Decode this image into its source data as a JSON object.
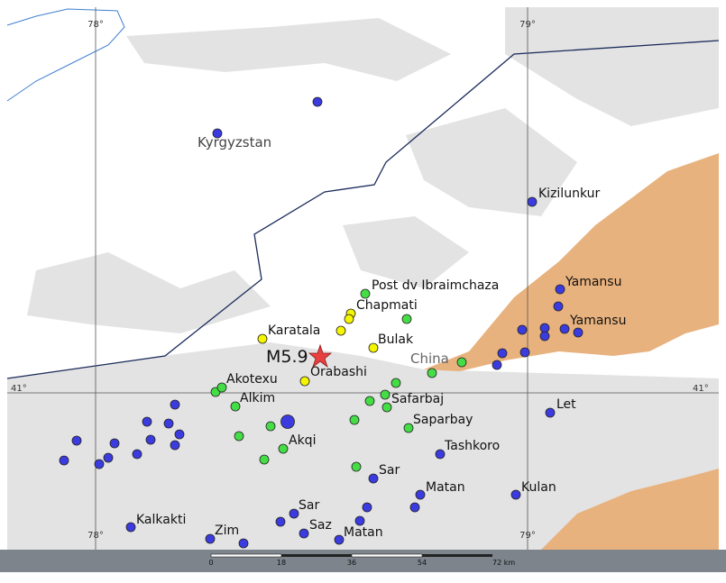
{
  "map": {
    "graticule": {
      "lon": [
        "78°",
        "79°"
      ],
      "lat": [
        "41°"
      ]
    },
    "countries": [
      "Kyrgyzstan",
      "China"
    ],
    "epicenter": {
      "label": "M5.9"
    },
    "places": [
      "Post dv Ibraimchaza",
      "Chapmati",
      "Karatala",
      "Bulak",
      "Orabashi",
      "Akotexu",
      "Alkim",
      "Safarbaj",
      "Saparbay",
      "Akqi",
      "Sar",
      "Tashkoro",
      "Matan",
      "Sar",
      "Saz",
      "Matan",
      "Kulan",
      "Let",
      "Kizilunkur",
      "Yamansu",
      "Yamansu",
      "Kalkakti",
      "Zim"
    ],
    "scale": [
      "0",
      "18",
      "36",
      "54",
      "72 km"
    ]
  }
}
